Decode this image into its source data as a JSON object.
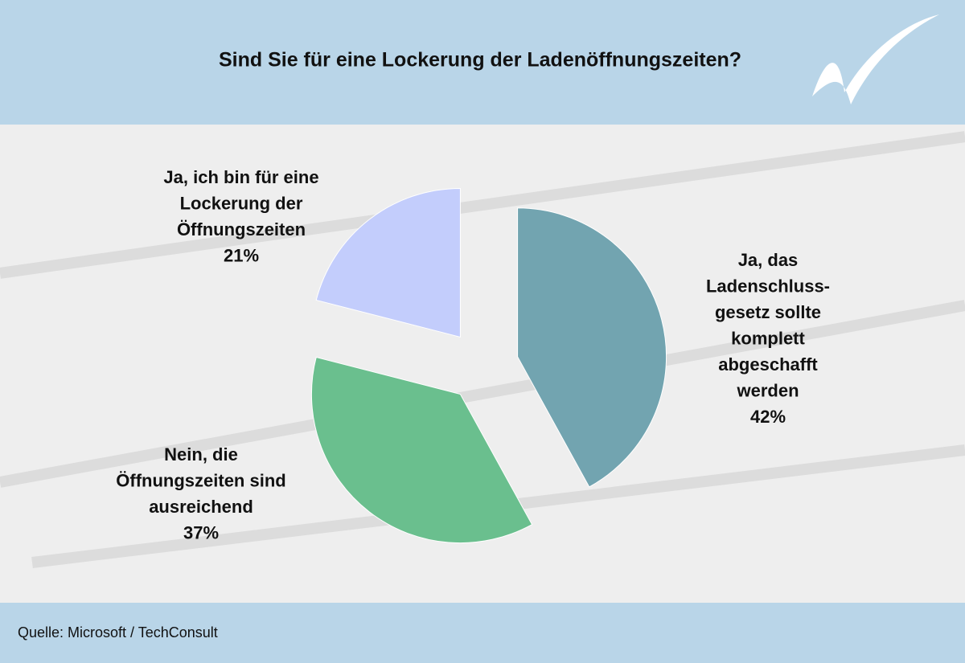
{
  "chart_data": {
    "type": "pie",
    "title": "Sind Sie für eine Lockerung der Ladenöffnungszeiten?",
    "source": "Quelle: Microsoft / TechConsult",
    "categories": [
      [
        "Ja, das",
        "Ladenschluss-",
        "gesetz sollte",
        "komplett",
        "abgeschafft",
        "werden"
      ],
      [
        "Nein, die",
        "Öffnungszeiten sind",
        "ausreichend"
      ],
      [
        "Ja, ich bin für eine",
        "Lockerung der",
        "Öffnungszeiten"
      ]
    ],
    "values": [
      42,
      37,
      21
    ],
    "value_labels": [
      "42%",
      "37%",
      "21%"
    ],
    "colors": [
      "#72a4b0",
      "#6abf8e",
      "#c3cdfc"
    ]
  }
}
